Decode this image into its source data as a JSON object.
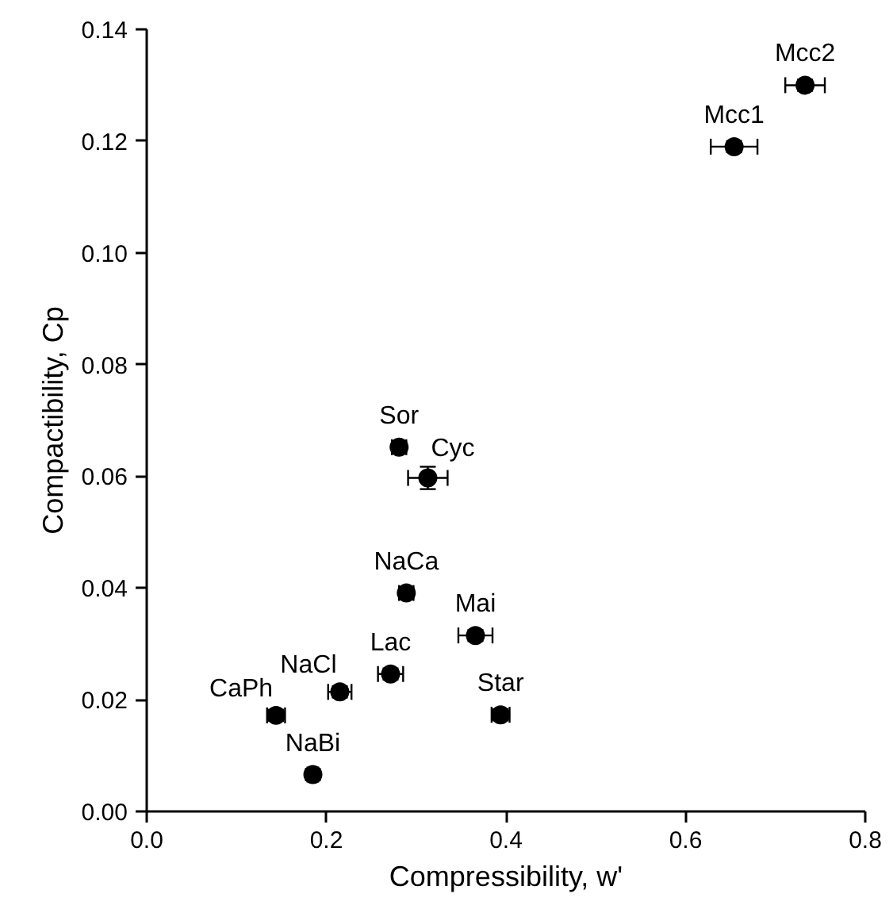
{
  "chart_data": {
    "type": "scatter",
    "xlabel": "Compressibility, w'",
    "ylabel": "Compactibility, Cp",
    "x": [
      0.733,
      0.654,
      0.281,
      0.313,
      0.289,
      0.366,
      0.2715,
      0.215,
      0.144,
      0.394,
      0.185
    ],
    "series": [
      {
        "color": "#000000",
        "values": [
          0.13,
          0.119,
          0.0652,
          0.0597,
          0.0391,
          0.0315,
          0.0246,
          0.0214,
          0.0172,
          0.0173,
          0.0066
        ],
        "xerrors": [
          0.022,
          0.026,
          0.008,
          0.022,
          0.008,
          0.019,
          0.014,
          0.013,
          0.01,
          0.01,
          0.006
        ],
        "errors": [
          0.001,
          0.001,
          0.001,
          0.002,
          0.001,
          0.001,
          0.001,
          0.001,
          0.001,
          0.001,
          0.001
        ]
      }
    ],
    "annotations": [
      {
        "text": "Mcc2",
        "x": 0.733,
        "y": 0.13
      },
      {
        "text": "Mcc1",
        "x": 0.654,
        "y": 0.119
      },
      {
        "text": "Sor",
        "x": 0.281,
        "y": 0.0652
      },
      {
        "text": "Cyc",
        "x": 0.313,
        "y": 0.0597
      },
      {
        "text": "NaCa",
        "x": 0.289,
        "y": 0.0391
      },
      {
        "text": "Mai",
        "x": 0.366,
        "y": 0.0315
      },
      {
        "text": "Lac",
        "x": 0.2715,
        "y": 0.0246
      },
      {
        "text": "NaCl",
        "x": 0.215,
        "y": 0.0214
      },
      {
        "text": "CaPh",
        "x": 0.144,
        "y": 0.0172
      },
      {
        "text": "Star",
        "x": 0.394,
        "y": 0.0173
      },
      {
        "text": "NaBi",
        "x": 0.185,
        "y": 0.0066
      }
    ],
    "xlim": [
      0,
      0.8
    ],
    "ylim": [
      0,
      0.14
    ],
    "xticks": [
      {
        "value": 0,
        "label": "0.0"
      },
      {
        "value": 0.2,
        "label": "0.2"
      },
      {
        "value": 0.4,
        "label": "0.4"
      },
      {
        "value": 0.6,
        "label": "0.6"
      },
      {
        "value": 0.8,
        "label": "0.8"
      }
    ],
    "yticks": [
      {
        "value": 0,
        "label": "0.00"
      },
      {
        "value": 0.02,
        "label": "0.02"
      },
      {
        "value": 0.04,
        "label": "0.04"
      },
      {
        "value": 0.06,
        "label": "0.06"
      },
      {
        "value": 0.08,
        "label": "0.08"
      },
      {
        "value": 0.1,
        "label": "0.10"
      },
      {
        "value": 0.12,
        "label": "0.12"
      },
      {
        "value": 0.14,
        "label": "0.14"
      }
    ],
    "marker": "circle",
    "grid": false
  }
}
